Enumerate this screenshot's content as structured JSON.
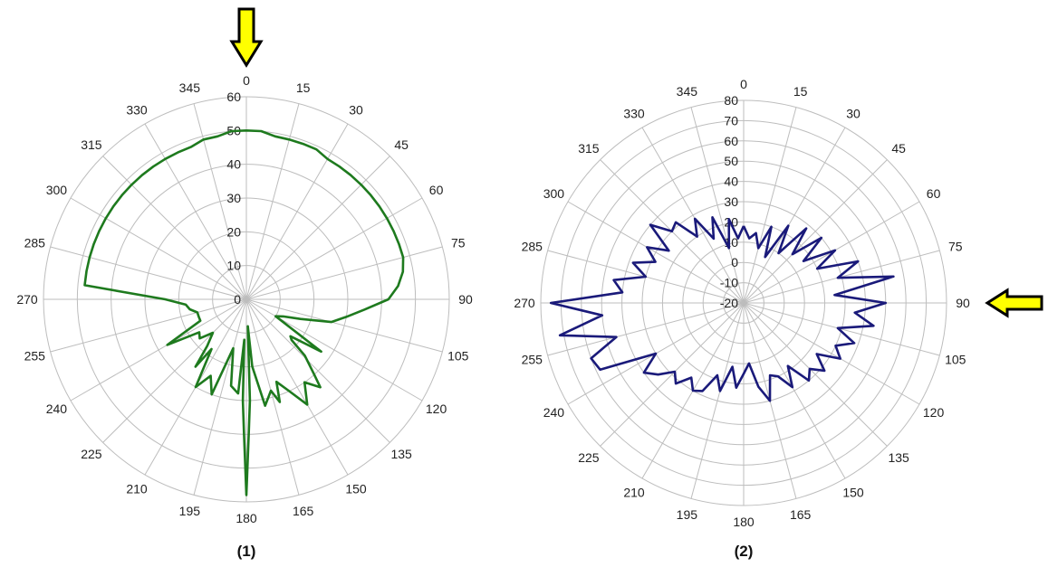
{
  "colors": {
    "plot1": "#1e7a1e",
    "plot2": "#1a1a7a",
    "arrow_fill": "#ffff00",
    "arrow_stroke": "#000000",
    "grid": "#bdbdbd"
  },
  "chart_data": [
    {
      "type": "polar-line",
      "caption": "(1)",
      "angle_labels": [
        "0",
        "15",
        "30",
        "45",
        "60",
        "75",
        "90",
        "105",
        "120",
        "135",
        "150",
        "165",
        "180",
        "195",
        "210",
        "225",
        "240",
        "255",
        "270",
        "285",
        "300",
        "315",
        "330",
        "345"
      ],
      "radial_ticks": [
        "0",
        "10",
        "20",
        "30",
        "40",
        "50",
        "60"
      ],
      "rlim": [
        0,
        60
      ],
      "angular_direction": "clockwise, 0 at top",
      "highlight_angle": 0,
      "series": [
        {
          "angles": [
            0,
            5,
            10,
            15,
            20,
            25,
            30,
            35,
            40,
            45,
            50,
            55,
            60,
            65,
            70,
            75,
            80,
            85,
            90,
            95,
            100,
            105,
            110,
            115,
            120,
            125,
            130,
            132,
            134,
            138,
            140,
            145,
            150,
            155,
            160,
            162,
            165,
            170,
            175,
            177,
            178,
            179,
            180,
            181,
            182,
            183,
            185,
            190,
            195,
            200,
            205,
            210,
            215,
            217,
            220,
            225,
            230,
            235,
            240,
            245,
            250,
            255,
            260,
            265,
            270,
            275,
            280,
            285,
            290,
            295,
            300,
            305,
            310,
            315,
            320,
            325,
            330,
            335,
            340,
            345,
            350,
            355,
            360
          ],
          "values": [
            50,
            50,
            49,
            49,
            49,
            49,
            48,
            48,
            48,
            48,
            48,
            48,
            48,
            48,
            48,
            48,
            47,
            45,
            42,
            35,
            30,
            26,
            17,
            12,
            10,
            27,
            17,
            18,
            24,
            30,
            34,
            30,
            36,
            30,
            26,
            32,
            28,
            32,
            20,
            8,
            30,
            40,
            58,
            40,
            30,
            12,
            28,
            26,
            15,
            30,
            25,
            30,
            18,
            25,
            18,
            14,
            18,
            17,
            27,
            15,
            15,
            15,
            17,
            18,
            24,
            48,
            48,
            48,
            48,
            48,
            48,
            48,
            48,
            48,
            48,
            48,
            48,
            48,
            48,
            49,
            49,
            50,
            50
          ]
        }
      ]
    },
    {
      "type": "polar-line",
      "caption": "(2)",
      "angle_labels": [
        "0",
        "15",
        "30",
        "45",
        "60",
        "75",
        "90",
        "105",
        "120",
        "135",
        "150",
        "165",
        "180",
        "195",
        "210",
        "225",
        "240",
        "255",
        "270",
        "285",
        "300",
        "315",
        "330",
        "345"
      ],
      "radial_ticks": [
        "-20",
        "-10",
        "0",
        "10",
        "20",
        "30",
        "40",
        "50",
        "60",
        "70",
        "80"
      ],
      "rlim": [
        -20,
        80
      ],
      "angular_direction": "clockwise, 0 at top",
      "highlight_angle": 90,
      "series": [
        {
          "angles": [
            0,
            5,
            10,
            15,
            20,
            25,
            30,
            35,
            40,
            45,
            50,
            55,
            60,
            65,
            70,
            75,
            80,
            85,
            90,
            95,
            100,
            105,
            110,
            115,
            120,
            125,
            130,
            135,
            140,
            145,
            150,
            155,
            160,
            165,
            170,
            175,
            180,
            185,
            190,
            195,
            200,
            205,
            210,
            215,
            220,
            225,
            230,
            235,
            240,
            245,
            250,
            255,
            260,
            265,
            270,
            275,
            280,
            285,
            290,
            295,
            300,
            305,
            310,
            315,
            320,
            325,
            330,
            335,
            340,
            345,
            350,
            355,
            360
          ],
          "values": [
            18,
            12,
            15,
            8,
            20,
            5,
            24,
            10,
            28,
            14,
            30,
            16,
            32,
            20,
            40,
            28,
            55,
            25,
            50,
            35,
            45,
            28,
            38,
            30,
            35,
            24,
            32,
            26,
            30,
            18,
            28,
            20,
            18,
            30,
            22,
            10,
            15,
            22,
            12,
            25,
            18,
            28,
            30,
            25,
            32,
            28,
            35,
            40,
            30,
            58,
            60,
            45,
            72,
            50,
            75,
            40,
            45,
            30,
            38,
            28,
            35,
            25,
            40,
            30,
            32,
            20,
            28,
            15,
            25,
            8,
            22,
            12,
            18
          ]
        }
      ]
    }
  ]
}
